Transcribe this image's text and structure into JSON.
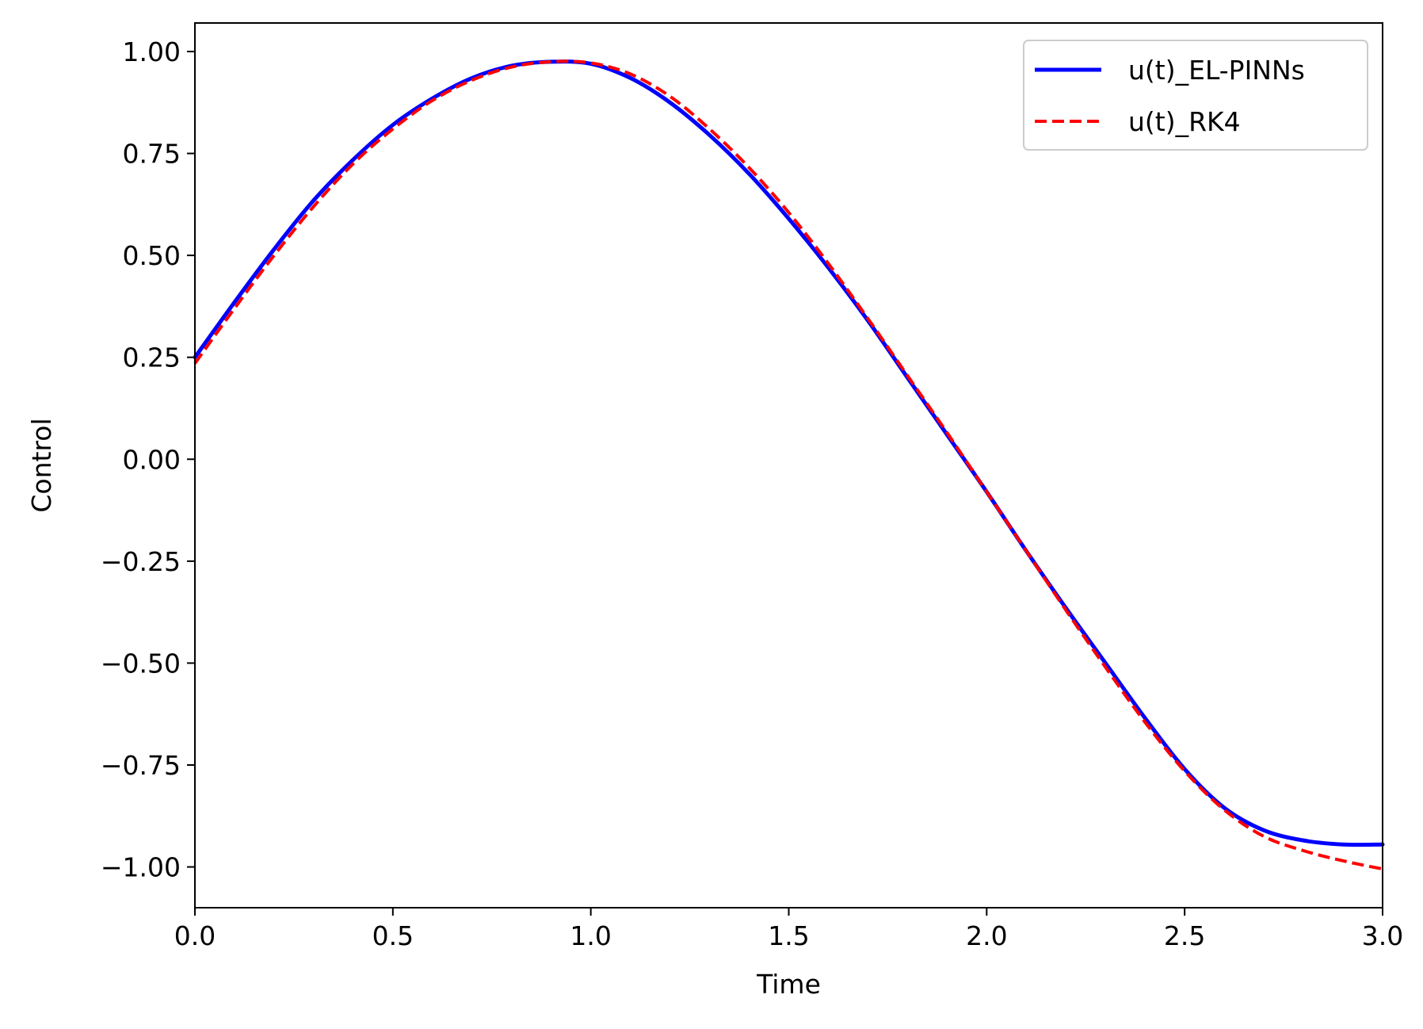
{
  "chart_data": {
    "type": "line",
    "title": "",
    "xlabel": "Time",
    "ylabel": "Control",
    "xlim": [
      0.0,
      3.0
    ],
    "ylim": [
      -1.1,
      1.07
    ],
    "grid": false,
    "legend_position": "top-right",
    "xticks": [
      {
        "value": 0.0,
        "label": "0.0"
      },
      {
        "value": 0.5,
        "label": "0.5"
      },
      {
        "value": 1.0,
        "label": "1.0"
      },
      {
        "value": 1.5,
        "label": "1.5"
      },
      {
        "value": 2.0,
        "label": "2.0"
      },
      {
        "value": 2.5,
        "label": "2.5"
      },
      {
        "value": 3.0,
        "label": "3.0"
      }
    ],
    "yticks": [
      {
        "value": 1.0,
        "label": "1.00"
      },
      {
        "value": 0.75,
        "label": "0.75"
      },
      {
        "value": 0.5,
        "label": "0.50"
      },
      {
        "value": 0.25,
        "label": "0.25"
      },
      {
        "value": 0.0,
        "label": "0.00"
      },
      {
        "value": -0.25,
        "label": "−0.25"
      },
      {
        "value": -0.5,
        "label": "−0.50"
      },
      {
        "value": -0.75,
        "label": "−0.75"
      },
      {
        "value": -1.0,
        "label": "−1.00"
      }
    ],
    "series": [
      {
        "name": "u(t)_EL-PINNs",
        "color": "#0000ff",
        "style": "solid",
        "x": [
          0.0,
          0.1,
          0.2,
          0.3,
          0.4,
          0.5,
          0.6,
          0.7,
          0.8,
          0.9,
          1.0,
          1.1,
          1.2,
          1.3,
          1.4,
          1.5,
          1.6,
          1.7,
          1.8,
          1.9,
          2.0,
          2.1,
          2.2,
          2.3,
          2.4,
          2.5,
          2.6,
          2.7,
          2.8,
          2.9,
          3.0
        ],
        "y": [
          0.25,
          0.385,
          0.515,
          0.635,
          0.735,
          0.82,
          0.885,
          0.935,
          0.965,
          0.975,
          0.97,
          0.935,
          0.875,
          0.795,
          0.7,
          0.59,
          0.47,
          0.34,
          0.2,
          0.06,
          -0.08,
          -0.225,
          -0.365,
          -0.5,
          -0.635,
          -0.76,
          -0.855,
          -0.91,
          -0.935,
          -0.945,
          -0.945
        ]
      },
      {
        "name": "u(t)_RK4",
        "color": "#ff0000",
        "style": "dashed",
        "x": [
          0.0,
          0.1,
          0.2,
          0.3,
          0.4,
          0.5,
          0.6,
          0.7,
          0.8,
          0.9,
          1.0,
          1.1,
          1.2,
          1.3,
          1.4,
          1.5,
          1.6,
          1.7,
          1.8,
          1.9,
          2.0,
          2.1,
          2.2,
          2.3,
          2.4,
          2.5,
          2.6,
          2.7,
          2.8,
          2.9,
          3.0
        ],
        "y": [
          0.235,
          0.37,
          0.5,
          0.62,
          0.725,
          0.81,
          0.88,
          0.93,
          0.962,
          0.975,
          0.972,
          0.945,
          0.89,
          0.81,
          0.715,
          0.605,
          0.48,
          0.345,
          0.205,
          0.065,
          -0.08,
          -0.225,
          -0.37,
          -0.51,
          -0.645,
          -0.765,
          -0.86,
          -0.925,
          -0.96,
          -0.985,
          -1.005
        ]
      }
    ]
  }
}
